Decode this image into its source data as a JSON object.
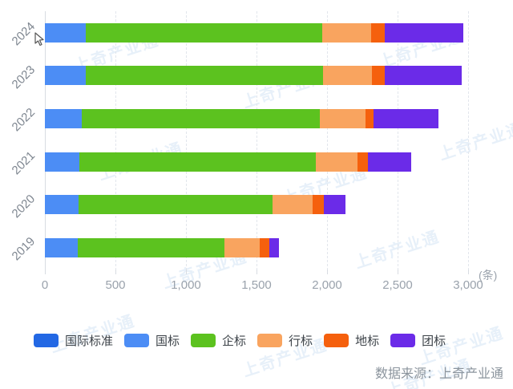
{
  "watermark": {
    "text": "上奇产业通"
  },
  "footer": {
    "source_text": "数据来源：上奇产业通"
  },
  "chart_data": {
    "type": "bar",
    "orientation": "horizontal",
    "stacked": true,
    "title": "",
    "unit_label": "(条)",
    "xlim": [
      0,
      3000
    ],
    "x_tick_values": [
      0,
      500,
      1000,
      1500,
      2000,
      2500,
      3000
    ],
    "x_tick_labels": [
      "0",
      "500",
      "1,000",
      "1,500",
      "2,000",
      "2,500",
      "3,000"
    ],
    "grid": "dashed-vertical",
    "legend_position": "bottom",
    "categories": [
      "2024",
      "2023",
      "2022",
      "2021",
      "2020",
      "2019"
    ],
    "series": [
      {
        "name": "国际标准",
        "color": "#2368E4",
        "values": [
          0,
          0,
          0,
          0,
          0,
          0
        ]
      },
      {
        "name": "国标",
        "color": "#4C8DF5",
        "values": [
          290,
          290,
          260,
          245,
          240,
          235
        ]
      },
      {
        "name": "企标",
        "color": "#5CC21F",
        "values": [
          1675,
          1680,
          1690,
          1675,
          1375,
          1035
        ]
      },
      {
        "name": "行标",
        "color": "#F9A45F",
        "values": [
          350,
          350,
          325,
          295,
          285,
          250
        ]
      },
      {
        "name": "地标",
        "color": "#F5600D",
        "values": [
          95,
          90,
          55,
          75,
          80,
          70
        ]
      },
      {
        "name": "团标",
        "color": "#6B2BE8",
        "values": [
          555,
          545,
          460,
          305,
          150,
          70
        ]
      }
    ],
    "totals": [
      2965,
      2955,
      2790,
      2595,
      2130,
      1660
    ]
  }
}
